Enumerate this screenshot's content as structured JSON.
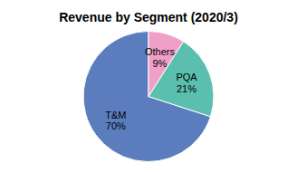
{
  "chart_data": {
    "type": "pie",
    "title": "Revenue by Segment  (2020/3)",
    "categories": [
      "T&M",
      "PQA",
      "Others"
    ],
    "values": [
      70,
      21,
      9
    ],
    "value_labels": [
      "70%",
      "21%",
      "9%"
    ],
    "colors": [
      "#5b7dbe",
      "#5bbfb0",
      "#f0a0c8"
    ],
    "data_labels": true
  }
}
